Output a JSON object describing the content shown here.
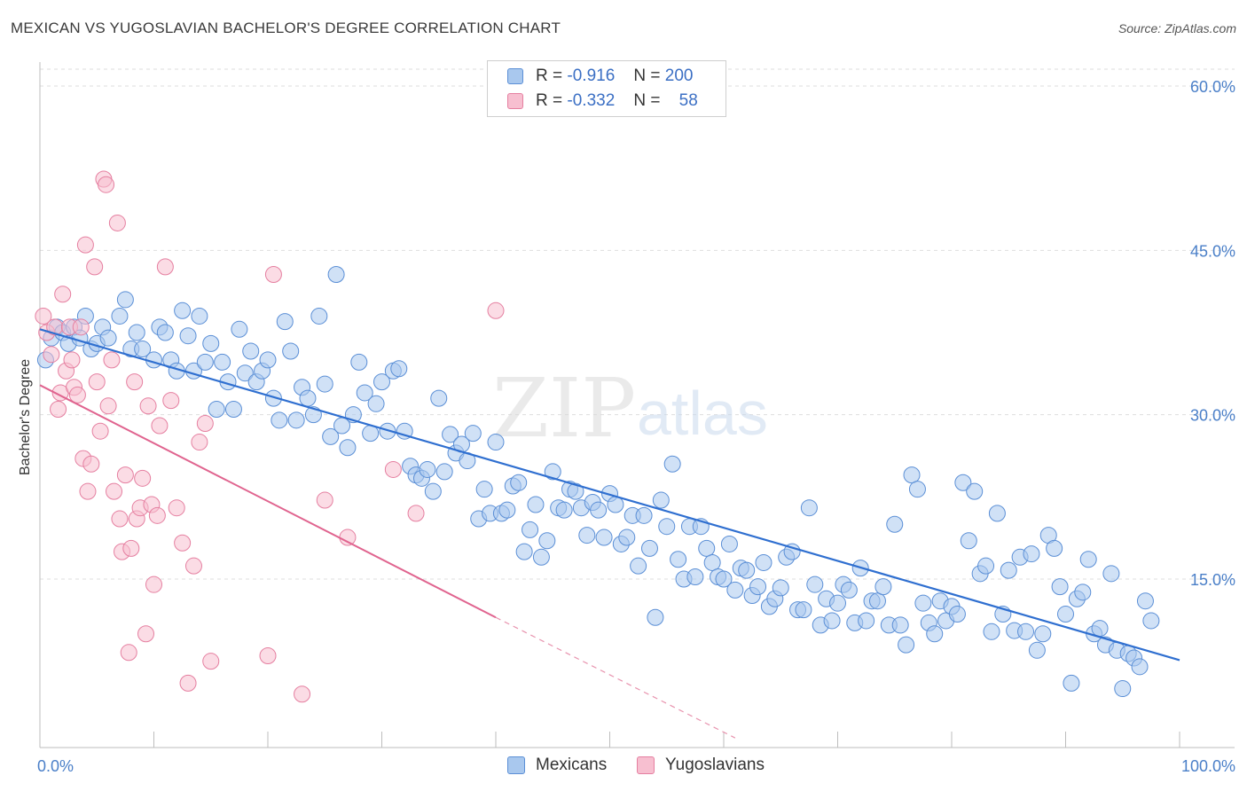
{
  "title": "MEXICAN VS YUGOSLAVIAN BACHELOR'S DEGREE CORRELATION CHART",
  "source": "Source: ZipAtlas.com",
  "watermark": {
    "zip": "ZIP",
    "atlas": "atlas"
  },
  "legend": {
    "rows": [
      {
        "r_label": "R =",
        "r_value": "-0.916",
        "n_label": "N =",
        "n_value": "200",
        "color": "#a9c8ee",
        "border": "#5b8fd6"
      },
      {
        "r_label": "R =",
        "r_value": "-0.332",
        "n_label": "N =",
        "n_value": "58",
        "color": "#f7bfd0",
        "border": "#e57fa0"
      }
    ]
  },
  "bottom_legend": [
    {
      "label": "Mexicans",
      "color": "#a9c8ee",
      "border": "#5b8fd6"
    },
    {
      "label": "Yugoslavians",
      "color": "#f7bfd0",
      "border": "#e57fa0"
    }
  ],
  "chart_data": {
    "type": "scatter",
    "title": "MEXICAN VS YUGOSLAVIAN BACHELOR'S DEGREE CORRELATION CHART",
    "xlabel": "",
    "ylabel": "Bachelor's Degree",
    "xlim": [
      0,
      100
    ],
    "ylim": [
      0,
      63
    ],
    "x_tick_labels": [
      "0.0%",
      "100.0%"
    ],
    "y_ticks": [
      15,
      30,
      45,
      60
    ],
    "y_tick_labels": [
      "15.0%",
      "30.0%",
      "45.0%",
      "60.0%"
    ],
    "grid": true,
    "series": [
      {
        "name": "Mexicans",
        "color": "#5b8fd6",
        "fill": "#a9c8ee",
        "trendline": {
          "x": [
            0,
            100
          ],
          "y": [
            37.8,
            7.6
          ]
        },
        "points": [
          [
            0.5,
            35
          ],
          [
            1,
            37
          ],
          [
            1.5,
            38
          ],
          [
            2,
            37.5
          ],
          [
            2.5,
            36.5
          ],
          [
            3,
            38
          ],
          [
            3.5,
            37
          ],
          [
            4,
            39
          ],
          [
            4.5,
            36
          ],
          [
            5,
            36.5
          ],
          [
            5.5,
            38
          ],
          [
            6,
            37
          ],
          [
            7,
            39
          ],
          [
            7.5,
            40.5
          ],
          [
            8,
            36
          ],
          [
            8.5,
            37.5
          ],
          [
            9,
            36
          ],
          [
            10,
            35
          ],
          [
            10.5,
            38
          ],
          [
            11,
            37.5
          ],
          [
            11.5,
            35
          ],
          [
            12,
            34
          ],
          [
            12.5,
            39.5
          ],
          [
            13,
            37.2
          ],
          [
            13.5,
            34
          ],
          [
            14,
            39
          ],
          [
            14.5,
            34.8
          ],
          [
            15,
            36.5
          ],
          [
            15.5,
            30.5
          ],
          [
            16,
            34.8
          ],
          [
            16.5,
            33
          ],
          [
            17,
            30.5
          ],
          [
            17.5,
            37.8
          ],
          [
            18,
            33.8
          ],
          [
            18.5,
            35.8
          ],
          [
            19,
            33
          ],
          [
            19.5,
            34
          ],
          [
            20,
            35
          ],
          [
            20.5,
            31.5
          ],
          [
            21,
            29.5
          ],
          [
            21.5,
            38.5
          ],
          [
            22,
            35.8
          ],
          [
            22.5,
            29.5
          ],
          [
            23,
            32.5
          ],
          [
            23.5,
            31.5
          ],
          [
            24,
            30
          ],
          [
            24.5,
            39
          ],
          [
            25,
            32.8
          ],
          [
            25.5,
            28
          ],
          [
            26,
            42.8
          ],
          [
            26.5,
            29
          ],
          [
            27,
            27
          ],
          [
            27.5,
            30
          ],
          [
            28,
            34.8
          ],
          [
            28.5,
            32
          ],
          [
            29,
            28.3
          ],
          [
            29.5,
            31
          ],
          [
            30,
            33
          ],
          [
            30.5,
            28.5
          ],
          [
            31,
            34
          ],
          [
            31.5,
            34.2
          ],
          [
            32,
            28.5
          ],
          [
            32.5,
            25.3
          ],
          [
            33,
            24.5
          ],
          [
            33.5,
            24.2
          ],
          [
            34,
            25
          ],
          [
            34.5,
            23
          ],
          [
            35,
            31.5
          ],
          [
            35.5,
            24.8
          ],
          [
            36,
            28.2
          ],
          [
            36.5,
            26.5
          ],
          [
            37,
            27.3
          ],
          [
            37.5,
            25.8
          ],
          [
            38,
            28.3
          ],
          [
            38.5,
            20.5
          ],
          [
            39,
            23.2
          ],
          [
            39.5,
            21
          ],
          [
            40,
            27.5
          ],
          [
            40.5,
            21
          ],
          [
            41,
            21.3
          ],
          [
            41.5,
            23.5
          ],
          [
            42,
            23.8
          ],
          [
            42.5,
            17.5
          ],
          [
            43,
            19.5
          ],
          [
            43.5,
            21.8
          ],
          [
            44,
            17
          ],
          [
            44.5,
            18.5
          ],
          [
            45,
            24.8
          ],
          [
            45.5,
            21.5
          ],
          [
            46,
            21.3
          ],
          [
            46.5,
            23.2
          ],
          [
            47,
            23
          ],
          [
            47.5,
            21.5
          ],
          [
            48,
            19
          ],
          [
            48.5,
            22
          ],
          [
            49,
            21.3
          ],
          [
            49.5,
            18.8
          ],
          [
            50,
            22.8
          ],
          [
            50.5,
            21.8
          ],
          [
            51,
            18.2
          ],
          [
            51.5,
            18.8
          ],
          [
            52,
            20.8
          ],
          [
            52.5,
            16.2
          ],
          [
            53,
            20.8
          ],
          [
            53.5,
            17.8
          ],
          [
            54,
            11.5
          ],
          [
            54.5,
            22.2
          ],
          [
            55,
            19.8
          ],
          [
            55.5,
            25.5
          ],
          [
            56,
            16.8
          ],
          [
            56.5,
            15
          ],
          [
            57,
            19.8
          ],
          [
            57.5,
            15.2
          ],
          [
            58,
            19.8
          ],
          [
            58.5,
            17.8
          ],
          [
            59,
            16.5
          ],
          [
            59.5,
            15.2
          ],
          [
            60,
            15
          ],
          [
            60.5,
            18.2
          ],
          [
            61,
            14
          ],
          [
            61.5,
            16
          ],
          [
            62,
            15.8
          ],
          [
            62.5,
            13.5
          ],
          [
            63,
            14.3
          ],
          [
            63.5,
            16.5
          ],
          [
            64,
            12.5
          ],
          [
            64.5,
            13.2
          ],
          [
            65,
            14.2
          ],
          [
            65.5,
            17
          ],
          [
            66,
            17.5
          ],
          [
            66.5,
            12.2
          ],
          [
            67,
            12.2
          ],
          [
            67.5,
            21.5
          ],
          [
            68,
            14.5
          ],
          [
            68.5,
            10.8
          ],
          [
            69,
            13.2
          ],
          [
            69.5,
            11.2
          ],
          [
            70,
            12.8
          ],
          [
            70.5,
            14.5
          ],
          [
            71,
            14
          ],
          [
            71.5,
            11
          ],
          [
            72,
            16
          ],
          [
            72.5,
            11.2
          ],
          [
            73,
            13
          ],
          [
            73.5,
            13
          ],
          [
            74,
            14.3
          ],
          [
            74.5,
            10.8
          ],
          [
            75,
            20
          ],
          [
            75.5,
            10.8
          ],
          [
            76,
            9
          ],
          [
            76.5,
            24.5
          ],
          [
            77,
            23.2
          ],
          [
            77.5,
            12.8
          ],
          [
            78,
            11
          ],
          [
            78.5,
            10
          ],
          [
            79,
            13
          ],
          [
            79.5,
            11.2
          ],
          [
            80,
            12.5
          ],
          [
            80.5,
            11.8
          ],
          [
            81,
            23.8
          ],
          [
            81.5,
            18.5
          ],
          [
            82,
            23
          ],
          [
            82.5,
            15.5
          ],
          [
            83,
            16.2
          ],
          [
            83.5,
            10.2
          ],
          [
            84,
            21
          ],
          [
            84.5,
            11.8
          ],
          [
            85,
            15.8
          ],
          [
            85.5,
            10.3
          ],
          [
            86,
            17
          ],
          [
            86.5,
            10.2
          ],
          [
            87,
            17.3
          ],
          [
            87.5,
            8.5
          ],
          [
            88,
            10
          ],
          [
            88.5,
            19
          ],
          [
            89,
            17.8
          ],
          [
            89.5,
            14.3
          ],
          [
            90,
            11.8
          ],
          [
            90.5,
            5.5
          ],
          [
            91,
            13.2
          ],
          [
            91.5,
            13.8
          ],
          [
            92,
            16.8
          ],
          [
            92.5,
            10
          ],
          [
            93,
            10.5
          ],
          [
            93.5,
            9
          ],
          [
            94,
            15.5
          ],
          [
            94.5,
            8.5
          ],
          [
            95,
            5
          ],
          [
            95.5,
            8.2
          ],
          [
            96,
            7.8
          ],
          [
            96.5,
            7
          ],
          [
            97,
            13
          ],
          [
            97.5,
            11.2
          ]
        ]
      },
      {
        "name": "Yugoslavians",
        "color": "#e57fa0",
        "fill": "#f7bfd0",
        "trendline": {
          "x": [
            0,
            40
          ],
          "y": [
            32.7,
            11.5
          ],
          "dashed_extension": {
            "x": [
              40,
              61
            ],
            "y": [
              11.5,
              0.5
            ]
          }
        },
        "points": [
          [
            0.3,
            39
          ],
          [
            0.6,
            37.5
          ],
          [
            1,
            35.5
          ],
          [
            1.3,
            38
          ],
          [
            1.6,
            30.5
          ],
          [
            1.8,
            32
          ],
          [
            2,
            41
          ],
          [
            2.3,
            34
          ],
          [
            2.6,
            38
          ],
          [
            2.8,
            35
          ],
          [
            3,
            32.5
          ],
          [
            3.3,
            31.8
          ],
          [
            3.6,
            38
          ],
          [
            3.8,
            26
          ],
          [
            4,
            45.5
          ],
          [
            4.2,
            23
          ],
          [
            4.5,
            25.5
          ],
          [
            4.8,
            43.5
          ],
          [
            5,
            33
          ],
          [
            5.3,
            28.5
          ],
          [
            5.6,
            51.5
          ],
          [
            5.8,
            51
          ],
          [
            6,
            30.8
          ],
          [
            6.3,
            35
          ],
          [
            6.5,
            23
          ],
          [
            6.8,
            47.5
          ],
          [
            7,
            20.5
          ],
          [
            7.2,
            17.5
          ],
          [
            7.5,
            24.5
          ],
          [
            7.8,
            8.3
          ],
          [
            8,
            17.8
          ],
          [
            8.3,
            33
          ],
          [
            8.5,
            20.5
          ],
          [
            8.8,
            21.5
          ],
          [
            9,
            24.2
          ],
          [
            9.3,
            10
          ],
          [
            9.5,
            30.8
          ],
          [
            9.8,
            21.8
          ],
          [
            10,
            14.5
          ],
          [
            10.3,
            20.8
          ],
          [
            10.5,
            29
          ],
          [
            11,
            43.5
          ],
          [
            11.5,
            31.3
          ],
          [
            12,
            21.5
          ],
          [
            12.5,
            18.3
          ],
          [
            13,
            5.5
          ],
          [
            13.5,
            16.2
          ],
          [
            14,
            27.5
          ],
          [
            14.5,
            29.2
          ],
          [
            15,
            7.5
          ],
          [
            20,
            8
          ],
          [
            20.5,
            42.8
          ],
          [
            23,
            4.5
          ],
          [
            25,
            22.2
          ],
          [
            40,
            39.5
          ],
          [
            27,
            18.8
          ],
          [
            31,
            25
          ],
          [
            33,
            21
          ]
        ]
      }
    ]
  }
}
